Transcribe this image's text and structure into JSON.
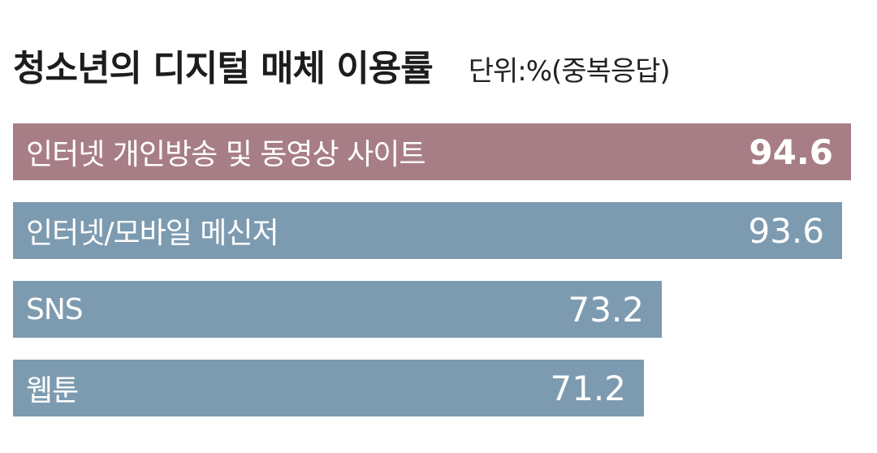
{
  "chart_data": {
    "type": "bar",
    "orientation": "horizontal",
    "title": "청소년의 디지털 매체 이용률",
    "unit_label": "단위:%(중복응답)",
    "categories": [
      "인터넷 개인방송 및 동영상 사이트",
      "인터넷/모바일 메신저",
      "SNS",
      "웹툰"
    ],
    "values": [
      "94.6",
      "93.6",
      "73.2",
      "71.2"
    ],
    "colors": [
      "#a87e86",
      "#7d9bb0",
      "#7d9bb0",
      "#7d9bb0"
    ],
    "highlight_index": 0,
    "xlim": [
      0,
      100
    ],
    "grid": false,
    "legend": "none"
  }
}
